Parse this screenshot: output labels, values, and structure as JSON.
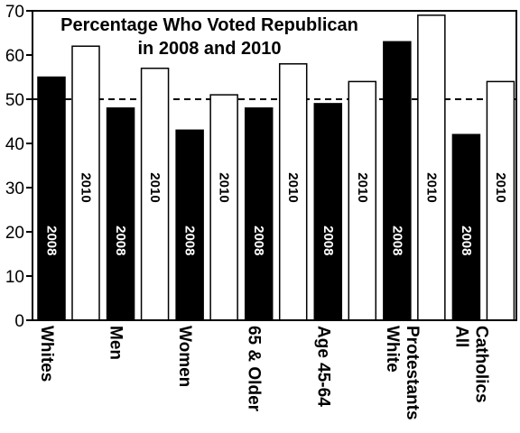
{
  "chart_data": {
    "type": "bar",
    "title_line1": "Percentage Who Voted Republican",
    "title_line2": "in 2008 and 2010",
    "categories": [
      [
        "Whites"
      ],
      [
        "Men"
      ],
      [
        "Women"
      ],
      [
        "65 & Older"
      ],
      [
        "Age 45-64"
      ],
      [
        "White",
        "Protestants"
      ],
      [
        "All",
        "Catholics"
      ]
    ],
    "series": [
      {
        "name": "2008",
        "values": [
          55,
          48,
          43,
          48,
          49,
          63,
          42
        ],
        "color": "#000000",
        "label_color": "#ffffff"
      },
      {
        "name": "2010",
        "values": [
          62,
          57,
          51,
          58,
          54,
          69,
          54
        ],
        "color": "#ffffff",
        "label_color": "#000000"
      }
    ],
    "yticks": [
      "0",
      "10",
      "20",
      "30",
      "40",
      "50",
      "60",
      "70"
    ],
    "ylim": [
      0,
      70
    ],
    "reference_line": 50
  }
}
